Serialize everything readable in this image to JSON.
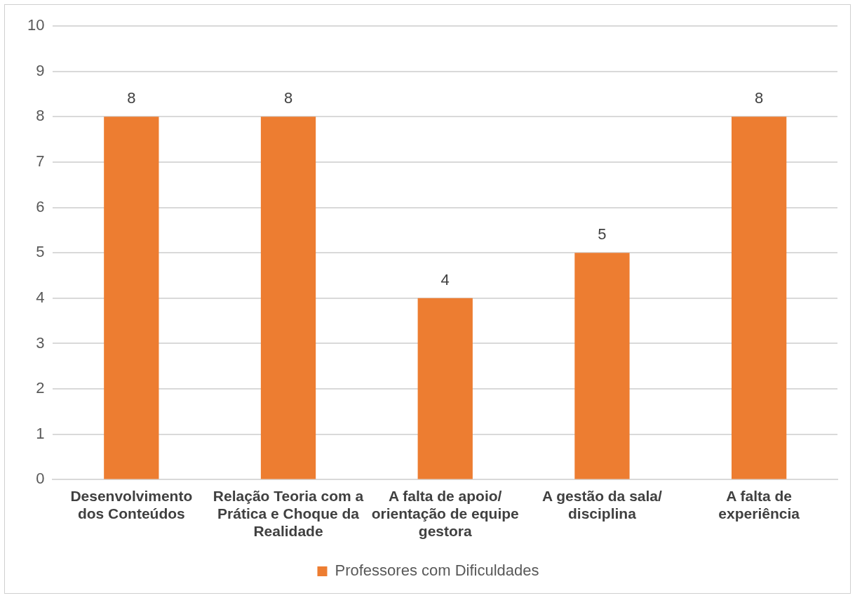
{
  "chart_data": {
    "type": "bar",
    "categories": [
      "Desenvolvimento dos Conteúdos",
      "Relação Teoria com a Prática e Choque da Realidade",
      "A falta de apoio/ orientação de equipe gestora",
      "A gestão da sala/ disciplina",
      "A falta de experiência"
    ],
    "series": [
      {
        "name": "Professores com Dificuldades",
        "color": "#ed7d31",
        "values": [
          8,
          8,
          4,
          5,
          8
        ]
      }
    ],
    "ylim": [
      0,
      10
    ],
    "yticks": [
      0,
      1,
      2,
      3,
      4,
      5,
      6,
      7,
      8,
      9,
      10
    ],
    "grid": "y",
    "legend": "bottom",
    "data_labels": true
  }
}
